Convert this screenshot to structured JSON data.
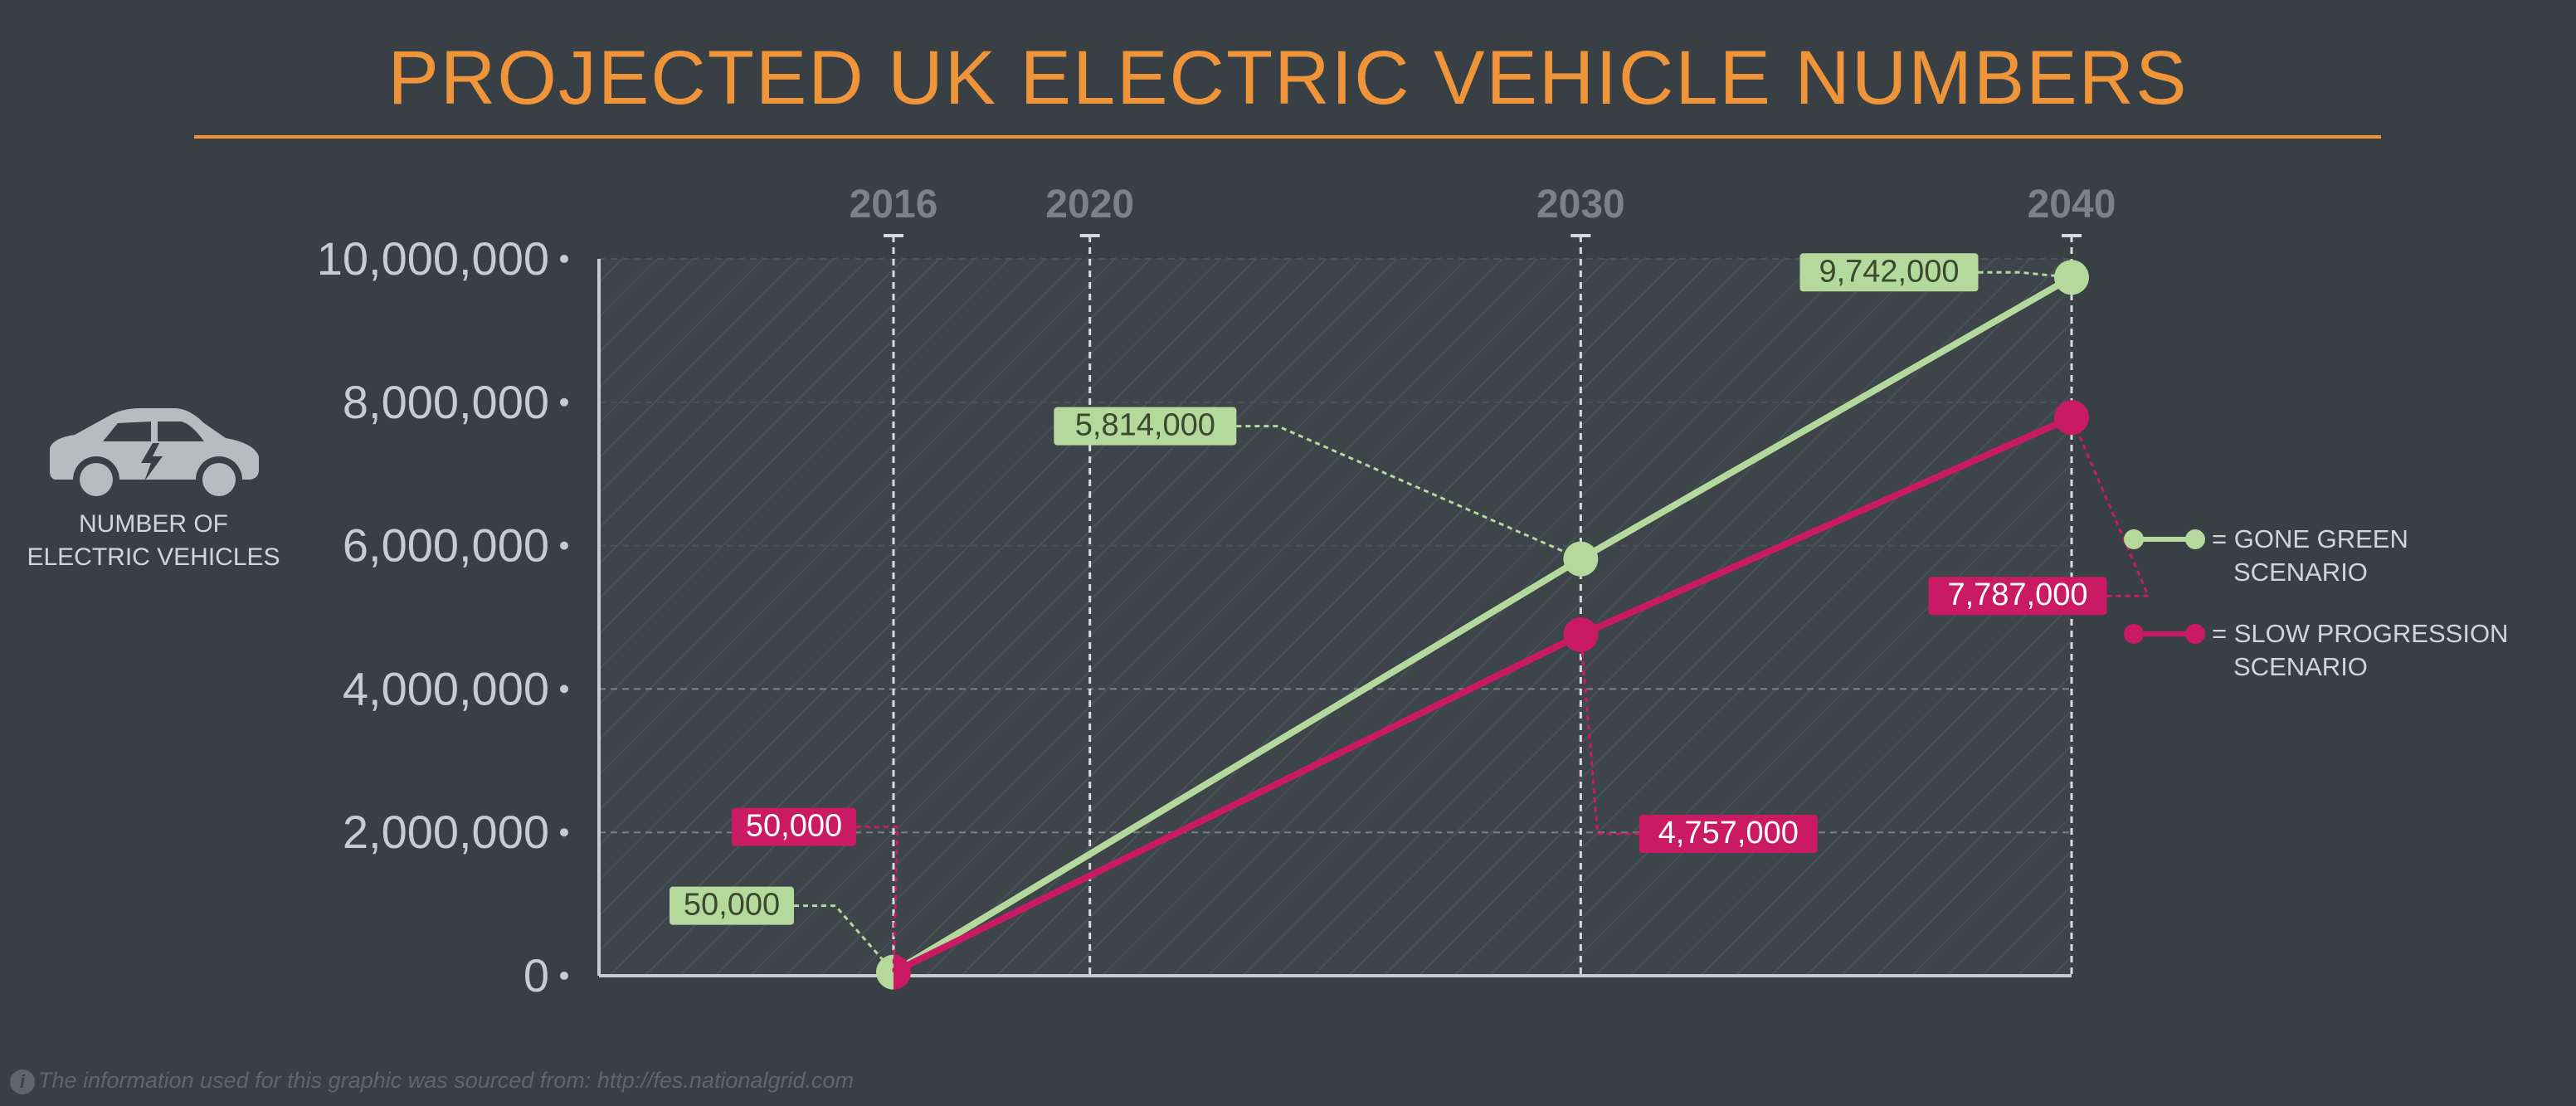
{
  "title": "PROJECTED UK ELECTRIC VEHICLE NUMBERS",
  "y_axis_label": [
    "NUMBER OF",
    "ELECTRIC VEHICLES"
  ],
  "source_text": "The information used for this graphic was sourced from: http://fes.nationalgrid.com",
  "legend": [
    {
      "label_line1": "= GONE GREEN",
      "label_line2": "SCENARIO",
      "color": "#b5d99c"
    },
    {
      "label_line1": "= SLOW PROGRESSION",
      "label_line2": "SCENARIO",
      "color": "#c91a63"
    }
  ],
  "chart_data": {
    "type": "line",
    "title": "PROJECTED UK ELECTRIC VEHICLE NUMBERS",
    "ylabel": "NUMBER OF ELECTRIC VEHICLES",
    "xlim": [
      2010,
      2040
    ],
    "ylim": [
      0,
      10000000
    ],
    "x_ticks": [
      2016,
      2020,
      2030,
      2040
    ],
    "y_ticks": [
      {
        "value": 0,
        "label": "0"
      },
      {
        "value": 2000000,
        "label": "2,000,000"
      },
      {
        "value": 4000000,
        "label": "4,000,000"
      },
      {
        "value": 6000000,
        "label": "6,000,000"
      },
      {
        "value": 8000000,
        "label": "8,000,000"
      },
      {
        "value": 10000000,
        "label": "10,000,000"
      }
    ],
    "grid": true,
    "legend_position": "right",
    "series": [
      {
        "name": "GONE GREEN SCENARIO",
        "color": "#b5d99c",
        "text_color": "#3a4a2e",
        "points": [
          {
            "x": 2016,
            "y": 50000,
            "label": "50,000"
          },
          {
            "x": 2030,
            "y": 5814000,
            "label": "5,814,000"
          },
          {
            "x": 2040,
            "y": 9742000,
            "label": "9,742,000"
          }
        ]
      },
      {
        "name": "SLOW PROGRESSION SCENARIO",
        "color": "#c91a63",
        "text_color": "#ffffff",
        "points": [
          {
            "x": 2016,
            "y": 50000,
            "label": "50,000"
          },
          {
            "x": 2030,
            "y": 4757000,
            "label": "4,757,000"
          },
          {
            "x": 2040,
            "y": 7787000,
            "label": "7,787,000"
          }
        ]
      }
    ]
  }
}
